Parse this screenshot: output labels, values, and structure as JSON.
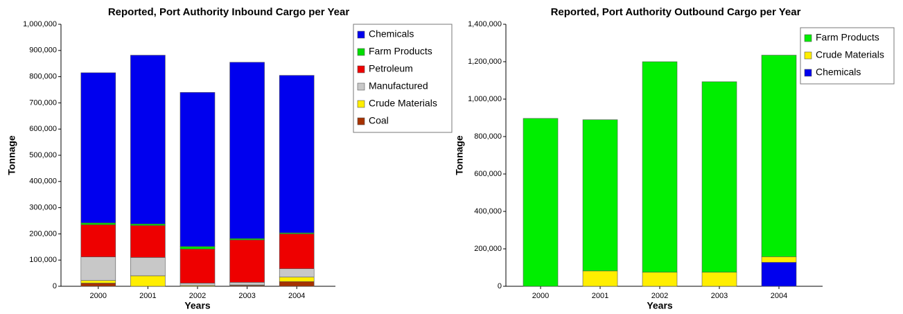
{
  "chart_data": [
    {
      "type": "bar",
      "stacked": true,
      "title": "Reported, Port Authority Inbound Cargo per Year",
      "xlabel": "Years",
      "ylabel": "Tonnage",
      "categories": [
        "2000",
        "2001",
        "2002",
        "2003",
        "2004"
      ],
      "series": [
        {
          "name": "Coal",
          "color": "#a63200",
          "values": [
            12000,
            0,
            0,
            3000,
            18000
          ]
        },
        {
          "name": "Crude Materials",
          "color": "#ffee00",
          "values": [
            10000,
            40000,
            3000,
            2000,
            17000
          ]
        },
        {
          "name": "Manufactured",
          "color": "#c8c8c8",
          "values": [
            90000,
            70000,
            9000,
            10000,
            32000
          ]
        },
        {
          "name": "Petroleum",
          "color": "#ee0000",
          "values": [
            123000,
            122000,
            130000,
            162000,
            133000
          ]
        },
        {
          "name": "Farm Products",
          "color": "#00dd00",
          "values": [
            7000,
            6000,
            10000,
            5000,
            4000
          ]
        },
        {
          "name": "Chemicals",
          "color": "#0000ee",
          "values": [
            573000,
            644000,
            588000,
            673000,
            601000
          ]
        }
      ],
      "ylim": [
        0,
        1000000
      ],
      "yticks": [
        0,
        {
          "value": 100000,
          "label": "100,000"
        },
        {
          "value": 200000,
          "label": "200,000"
        },
        {
          "value": 300000,
          "label": "300,000"
        },
        {
          "value": 400000,
          "label": "400,000"
        },
        {
          "value": 500000,
          "label": "500,000"
        },
        {
          "value": 600000,
          "label": "600,000"
        },
        {
          "value": 700000,
          "label": "700,000"
        },
        {
          "value": 800000,
          "label": "800,000"
        },
        {
          "value": 900000,
          "label": "900,000"
        },
        {
          "value": 1000000,
          "label": "1,000,000"
        }
      ],
      "legend": "upper right",
      "grid": false
    },
    {
      "type": "bar",
      "stacked": true,
      "title": "Reported, Port Authority Outbound Cargo per Year",
      "xlabel": "Years",
      "ylabel": "Tonnage",
      "categories": [
        "2000",
        "2001",
        "2002",
        "2003",
        "2004"
      ],
      "series": [
        {
          "name": "Chemicals",
          "color": "#0000ee",
          "values": [
            0,
            0,
            0,
            0,
            128000
          ]
        },
        {
          "name": "Crude Materials",
          "color": "#ffee00",
          "values": [
            0,
            82000,
            75000,
            75000,
            30000
          ]
        },
        {
          "name": "Farm Products",
          "color": "#00ee00",
          "values": [
            897000,
            808000,
            1125000,
            1018000,
            1077000
          ]
        }
      ],
      "ylim": [
        0,
        1400000
      ],
      "yticks": [
        0,
        {
          "value": 200000,
          "label": "200,000"
        },
        {
          "value": 400000,
          "label": "400,000"
        },
        {
          "value": 600000,
          "label": "600,000"
        },
        {
          "value": 800000,
          "label": "800,000"
        },
        {
          "value": 1000000,
          "label": "1,000,000"
        },
        {
          "value": 1200000,
          "label": "1,200,000"
        },
        {
          "value": 1400000,
          "label": "1,400,000"
        }
      ],
      "legend": "upper right",
      "grid": false
    }
  ]
}
